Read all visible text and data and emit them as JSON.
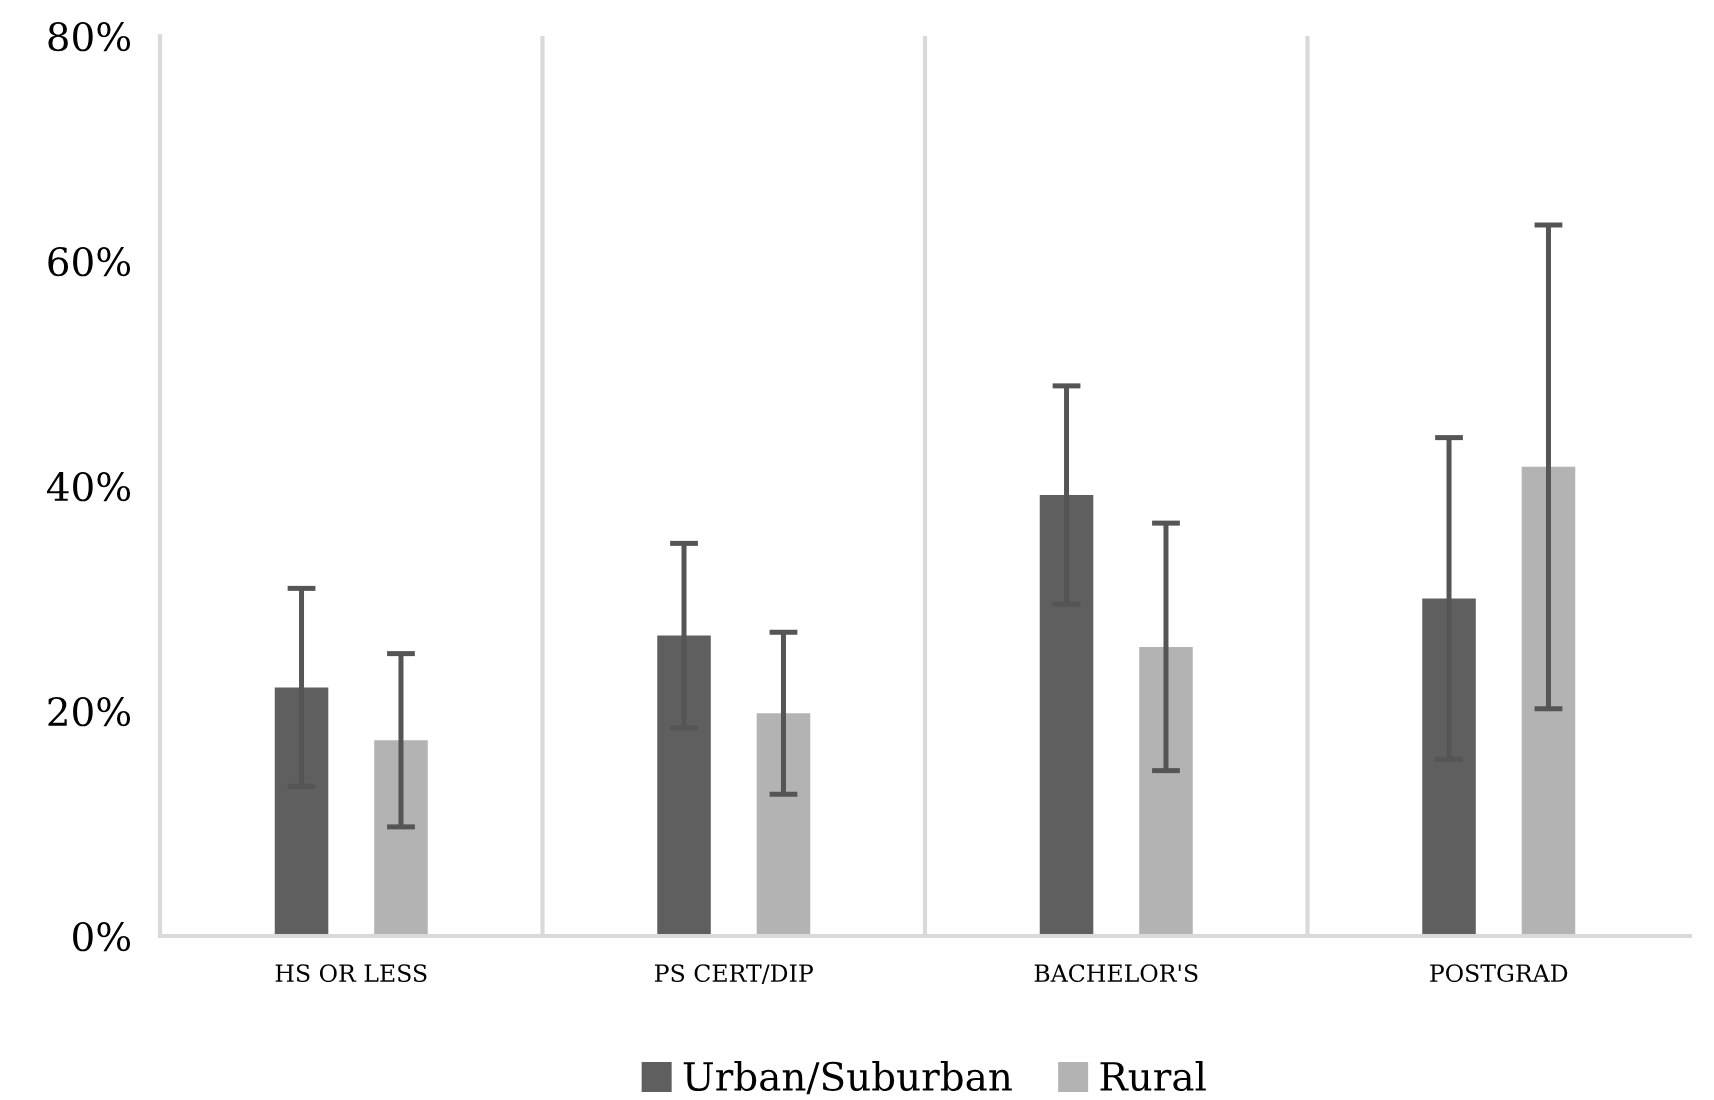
{
  "chart_data": {
    "type": "bar",
    "categories": [
      "HS OR LESS",
      "PS CERT/DIP",
      "BACHELOR'S",
      "POSTGRAD"
    ],
    "series": [
      {
        "name": "Urban/Suburban",
        "color": "#5f5f5f",
        "values": [
          22.1,
          26.7,
          39.2,
          30.0
        ],
        "errors": [
          8.8,
          8.2,
          9.7,
          14.3
        ]
      },
      {
        "name": "Rural",
        "color": "#b3b3b3",
        "values": [
          17.4,
          19.8,
          25.7,
          41.7
        ],
        "errors": [
          7.7,
          7.2,
          11.0,
          21.5
        ]
      }
    ],
    "ylim": [
      0,
      80
    ],
    "yticks": [
      {
        "value": 0,
        "label": "0%"
      },
      {
        "value": 20,
        "label": "20%"
      },
      {
        "value": 40,
        "label": "40%"
      },
      {
        "value": 60,
        "label": "60%"
      },
      {
        "value": 80,
        "label": "80%"
      }
    ],
    "grid": "x",
    "legend": "bottom"
  }
}
